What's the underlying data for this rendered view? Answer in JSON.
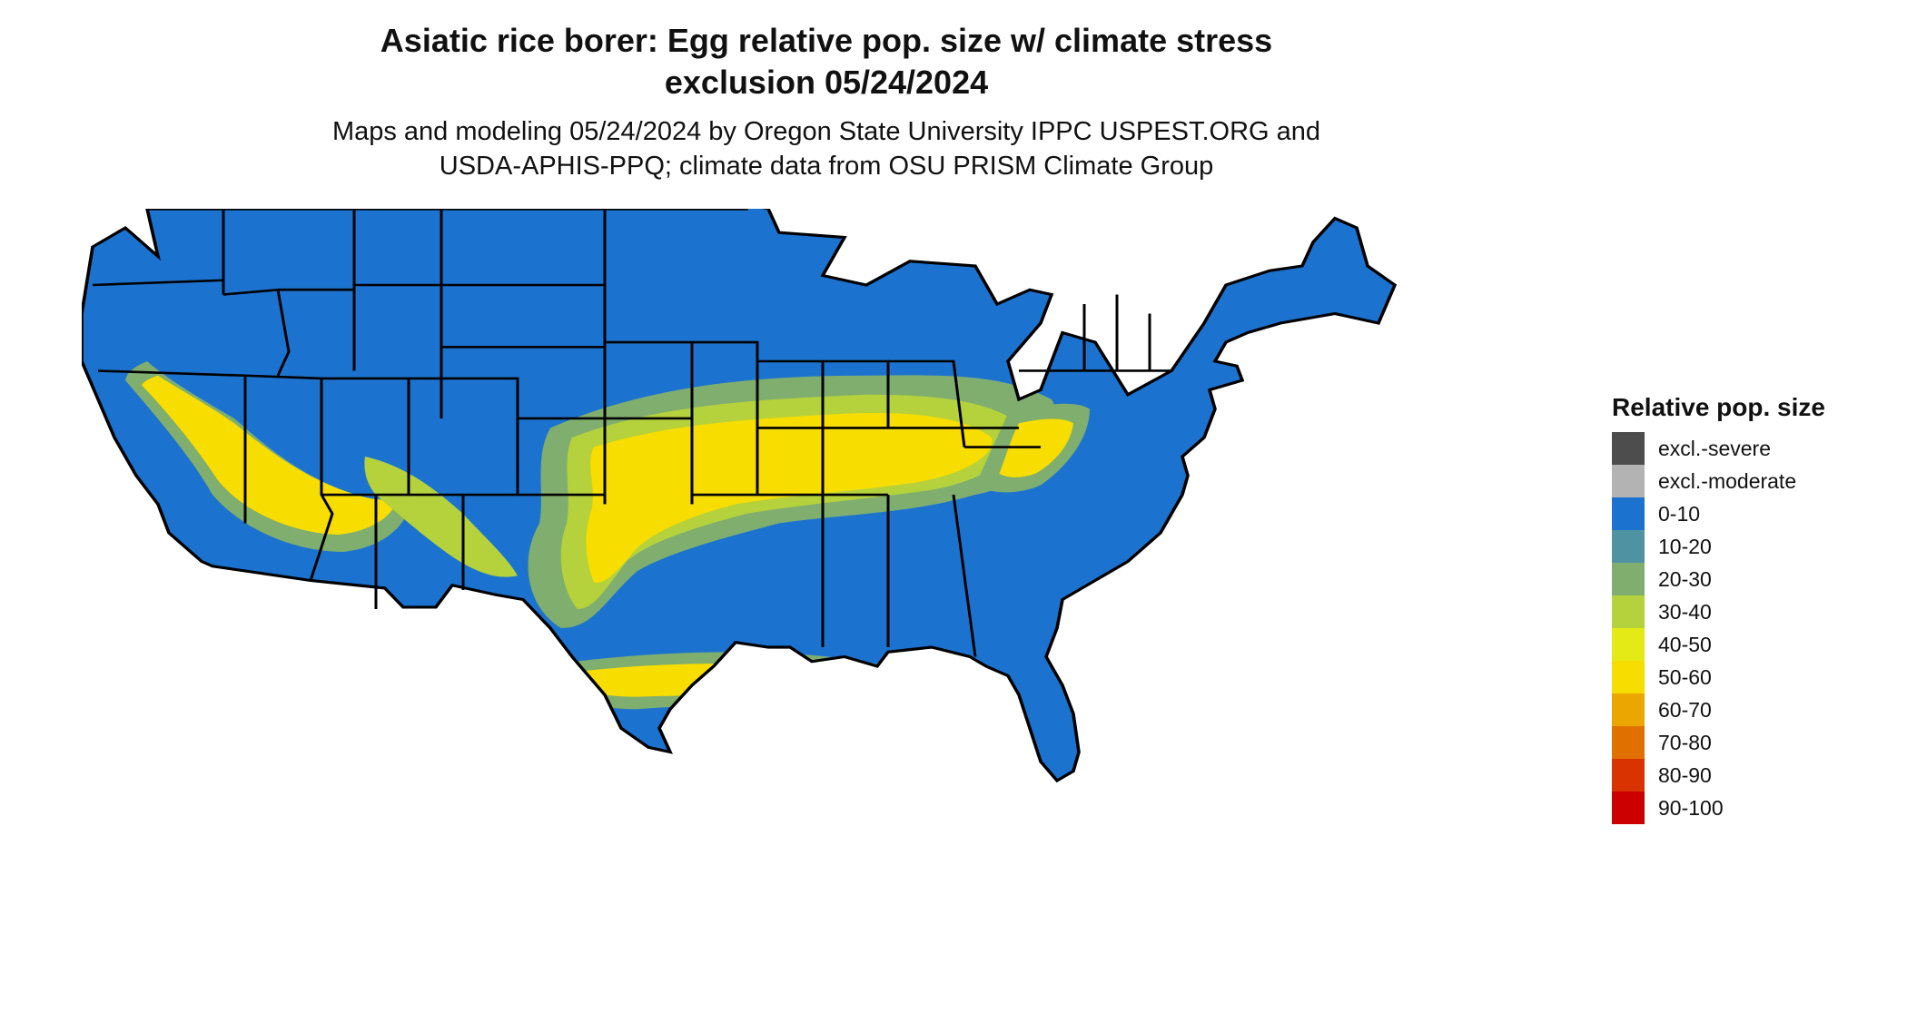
{
  "header": {
    "title_line1": "Asiatic rice borer: Egg relative pop. size w/ climate stress",
    "title_line2": "exclusion 05/24/2024",
    "subtitle_line1": "Maps and modeling 05/24/2024 by Oregon State University IPPC USPEST.ORG and",
    "subtitle_line2": "USDA-APHIS-PPQ; climate data from OSU PRISM Climate Group"
  },
  "legend": {
    "title": "Relative pop. size",
    "items": [
      {
        "label": "excl.-severe",
        "color": "#4d4d4d"
      },
      {
        "label": "excl.-moderate",
        "color": "#b3b3b3"
      },
      {
        "label": "0-10",
        "color": "#1c73cf"
      },
      {
        "label": "10-20",
        "color": "#4f93a3"
      },
      {
        "label": "20-30",
        "color": "#7fae6e"
      },
      {
        "label": "30-40",
        "color": "#b5d13c"
      },
      {
        "label": "40-50",
        "color": "#e4ea16"
      },
      {
        "label": "50-60",
        "color": "#f7dd00"
      },
      {
        "label": "60-70",
        "color": "#eba700"
      },
      {
        "label": "70-80",
        "color": "#e07000"
      },
      {
        "label": "80-90",
        "color": "#d83300"
      },
      {
        "label": "90-100",
        "color": "#cc0000"
      }
    ]
  },
  "map": {
    "base_color": "#1c73cf",
    "border_color": "#000000"
  }
}
